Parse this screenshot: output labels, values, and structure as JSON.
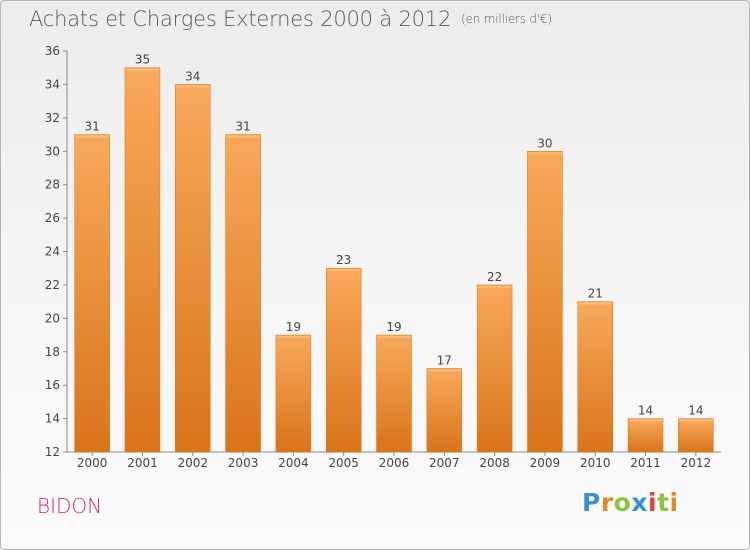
{
  "header": {
    "title": "Achats et Charges Externes 2000 à 2012",
    "unit": "(en milliers d'€)"
  },
  "place_name": "BIDON",
  "brand": {
    "logo_letters": [
      "P",
      "r",
      "o",
      "x",
      "i",
      "t",
      "i"
    ],
    "colors": [
      "#3b8fd6",
      "#e08a24",
      "#8cc43e",
      "#3b8fd6",
      "#e0423a",
      "#8cc43e",
      "#e08a24"
    ]
  },
  "chart_data": {
    "type": "bar",
    "categories": [
      "2000",
      "2001",
      "2002",
      "2003",
      "2004",
      "2005",
      "2006",
      "2007",
      "2008",
      "2009",
      "2010",
      "2011",
      "2012"
    ],
    "values": [
      31,
      35,
      34,
      31,
      19,
      23,
      19,
      17,
      22,
      30,
      21,
      14,
      14
    ],
    "ylim": [
      12,
      36
    ],
    "yticks": [
      12,
      14,
      16,
      18,
      20,
      22,
      24,
      26,
      28,
      30,
      32,
      34,
      36
    ],
    "grid": false,
    "bar_color": "#f0902a",
    "bar_color_light": "#f7a95a",
    "bar_color_dark": "#d9741a"
  }
}
